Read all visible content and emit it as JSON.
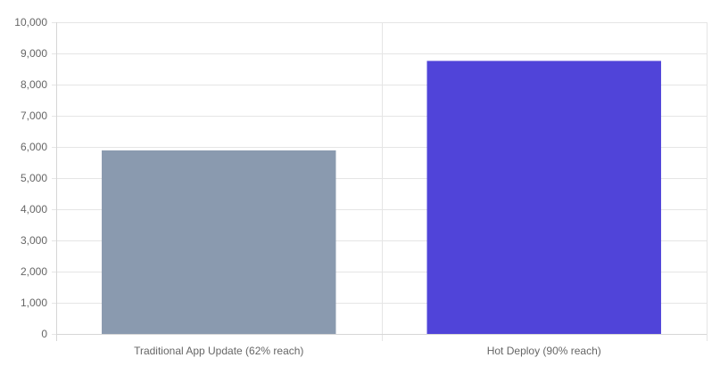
{
  "chart_data": {
    "type": "bar",
    "title": "",
    "xlabel": "",
    "ylabel": "",
    "categories": [
      "Traditional App Update (62% reach)",
      "Hot Deploy (90% reach)"
    ],
    "values": [
      5890,
      8760
    ],
    "colors": [
      "#8a9aaf",
      "#5044d9"
    ],
    "ylim": [
      0,
      10000
    ],
    "yticks": [
      0,
      1000,
      2000,
      3000,
      4000,
      5000,
      6000,
      7000,
      8000,
      9000,
      10000
    ],
    "ytick_labels": [
      "0",
      "1,000",
      "2,000",
      "3,000",
      "4,000",
      "5,000",
      "6,000",
      "7,000",
      "8,000",
      "9,000",
      "10,000"
    ],
    "grid": true,
    "legend": "none"
  }
}
